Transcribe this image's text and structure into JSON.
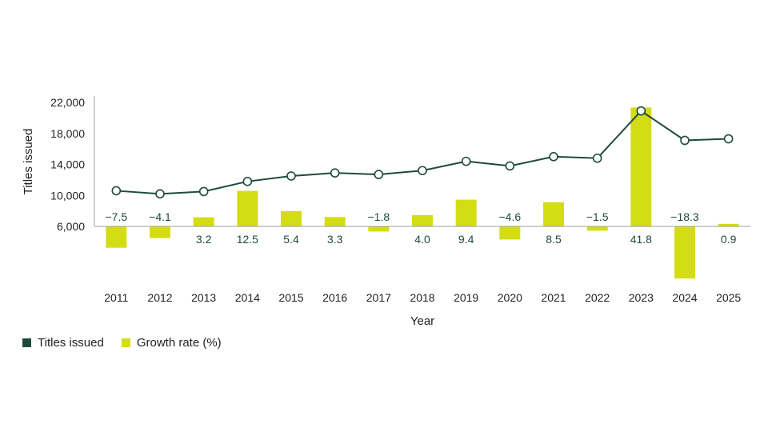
{
  "chart_data": {
    "type": "bar+line",
    "xlabel": "Year",
    "ylabel": "Titles issued",
    "categories": [
      "2011",
      "2012",
      "2013",
      "2014",
      "2015",
      "2016",
      "2017",
      "2018",
      "2019",
      "2020",
      "2021",
      "2022",
      "2023",
      "2024",
      "2025"
    ],
    "ylim": [
      6000,
      22000
    ],
    "y_ticks": [
      "6,000",
      "10,000",
      "14,000",
      "18,000",
      "22,000"
    ],
    "y_tick_values": [
      6000,
      10000,
      14000,
      18000,
      22000
    ],
    "growth_range": [
      -11,
      25
    ],
    "series": [
      {
        "name": "Titles issued",
        "type": "line",
        "color": "#1e4a3c",
        "values": [
          10600,
          10200,
          10500,
          11800,
          12500,
          12900,
          12700,
          13200,
          14400,
          13800,
          15000,
          14800,
          20900,
          17100,
          17300
        ]
      },
      {
        "name": "Growth rate (%)",
        "type": "bar",
        "color": "#d4dd14",
        "values": [
          -7.5,
          -4.1,
          3.2,
          12.5,
          5.4,
          3.3,
          -1.8,
          4.0,
          9.4,
          -4.6,
          8.5,
          -1.5,
          41.8,
          -18.3,
          0.9
        ],
        "labels": [
          "−7.5",
          "−4.1",
          "3.2",
          "12.5",
          "5.4",
          "3.3",
          "−1.8",
          "4.0",
          "9.4",
          "−4.6",
          "8.5",
          "−1.5",
          "41.8",
          "−18.3",
          "0.9"
        ]
      }
    ],
    "legend": {
      "position": "bottom-left",
      "items": [
        {
          "label": "Titles issued",
          "color": "#1e4a3c"
        },
        {
          "label": "Growth rate (%)",
          "color": "#d4dd14"
        }
      ]
    },
    "grid": false
  }
}
